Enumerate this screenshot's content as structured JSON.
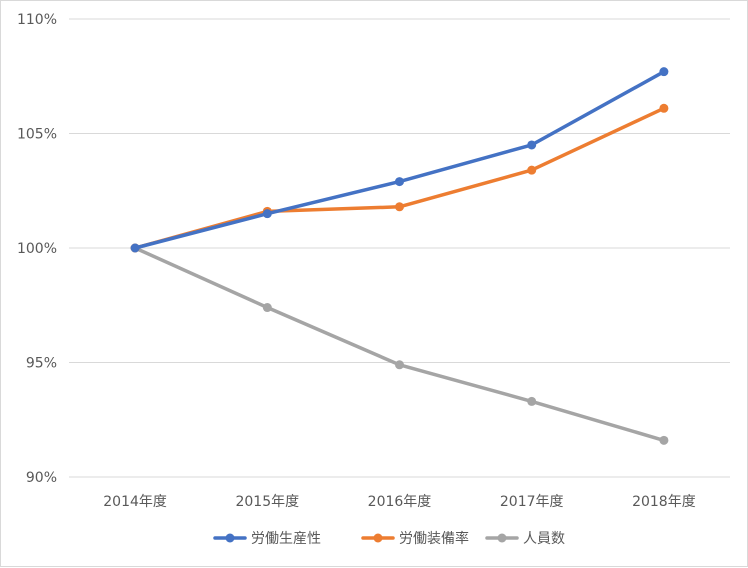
{
  "chart_data": {
    "type": "line",
    "categories": [
      "2014年度",
      "2015年度",
      "2016年度",
      "2017年度",
      "2018年度"
    ],
    "y_ticks": [
      "90%",
      "95%",
      "100%",
      "105%",
      "110%"
    ],
    "ylim": [
      90,
      110
    ],
    "y_unit": "%",
    "grid": true,
    "legend_position": "bottom",
    "series": [
      {
        "name": "労働生産性",
        "color": "#4472c4",
        "values": [
          100.0,
          101.5,
          102.9,
          104.5,
          107.7
        ]
      },
      {
        "name": "労働装備率",
        "color": "#ed7d31",
        "values": [
          100.0,
          101.6,
          101.8,
          103.4,
          106.1
        ]
      },
      {
        "name": "人員数",
        "color": "#a5a5a5",
        "values": [
          100.0,
          97.4,
          94.9,
          93.3,
          91.6
        ]
      }
    ]
  }
}
